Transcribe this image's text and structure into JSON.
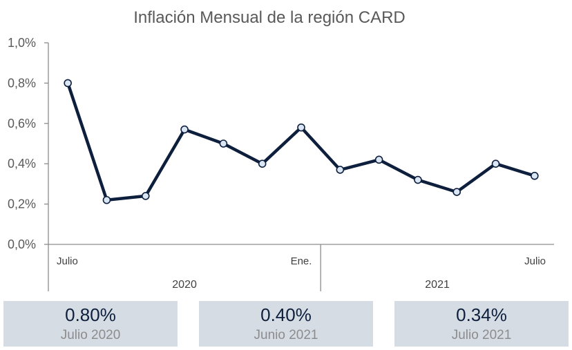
{
  "chart_data": {
    "type": "line",
    "title": "Inflación Mensual de la región CARD",
    "x": [
      "Julio",
      "",
      "",
      "",
      "",
      "",
      "Ene.",
      "",
      "",
      "",
      "",
      "",
      "Julio"
    ],
    "series": [
      {
        "values": [
          0.8,
          0.22,
          0.24,
          0.57,
          0.5,
          0.4,
          0.58,
          0.37,
          0.42,
          0.32,
          0.26,
          0.4,
          0.34
        ]
      }
    ],
    "groups": [
      {
        "label": "2020",
        "count": 7
      },
      {
        "label": "2021",
        "count": 6
      }
    ],
    "ylim": [
      0,
      1.0
    ],
    "yticks": [
      "0,0%",
      "0,2%",
      "0,4%",
      "0,6%",
      "0,8%",
      "1,0%"
    ],
    "grid": false,
    "line_color": "#0d1f3c",
    "marker_color": "#dbe6f5"
  },
  "cards": [
    {
      "value": "0.80%",
      "label": "Julio 2020"
    },
    {
      "value": "0.40%",
      "label": "Junio 2021"
    },
    {
      "value": "0.34%",
      "label": "Julio 2021"
    }
  ]
}
